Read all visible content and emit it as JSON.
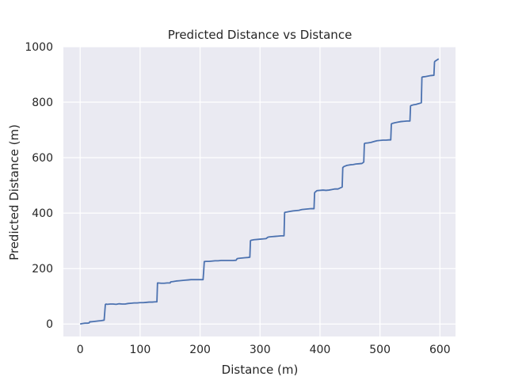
{
  "chart_data": {
    "type": "line",
    "title": "Predicted Distance vs Distance",
    "xlabel": "Distance (m)",
    "ylabel": "Predicted Distance (m)",
    "xlim": [
      -28,
      626
    ],
    "ylim": [
      -45,
      1000
    ],
    "xticks": [
      0,
      100,
      200,
      300,
      400,
      500,
      600
    ],
    "yticks": [
      0,
      200,
      400,
      600,
      800,
      1000
    ],
    "xtick_labels": [
      "0",
      "100",
      "200",
      "300",
      "400",
      "500",
      "600"
    ],
    "ytick_labels": [
      "0",
      "200",
      "400",
      "600",
      "800",
      "1000"
    ],
    "grid": true,
    "background_color": "#eaeaf2",
    "grid_color": "#ffffff",
    "series": [
      {
        "color": "#4c72b0",
        "x": [
          0,
          2,
          5,
          8,
          12,
          15,
          16,
          18,
          22,
          26,
          30,
          35,
          40,
          42,
          43,
          45,
          50,
          55,
          60,
          65,
          70,
          75,
          80,
          85,
          90,
          95,
          100,
          105,
          110,
          115,
          120,
          125,
          128,
          129,
          130,
          135,
          140,
          145,
          150,
          151,
          155,
          160,
          165,
          170,
          175,
          180,
          185,
          190,
          195,
          200,
          205,
          206,
          207,
          210,
          215,
          220,
          225,
          230,
          235,
          240,
          245,
          250,
          255,
          260,
          262,
          265,
          270,
          275,
          280,
          283,
          284,
          285,
          290,
          295,
          300,
          305,
          310,
          313,
          315,
          320,
          325,
          330,
          335,
          340,
          341,
          342,
          345,
          350,
          355,
          360,
          365,
          368,
          370,
          375,
          380,
          385,
          390,
          391,
          392,
          395,
          400,
          405,
          410,
          415,
          420,
          425,
          430,
          435,
          437,
          438,
          440,
          445,
          450,
          455,
          460,
          465,
          470,
          473,
          474,
          475,
          480,
          485,
          490,
          495,
          500,
          505,
          510,
          515,
          518,
          519,
          520,
          525,
          530,
          535,
          540,
          545,
          550,
          551,
          552,
          555,
          560,
          565,
          569,
          570,
          571,
          575,
          580,
          585,
          590,
          591,
          592,
          595,
          597,
          598
        ],
        "y": [
          0,
          1,
          2,
          3,
          3,
          4,
          8,
          8,
          9,
          10,
          11,
          12,
          14,
          70,
          72,
          71,
          72,
          72,
          71,
          73,
          72,
          72,
          74,
          75,
          76,
          76,
          77,
          77,
          78,
          79,
          79,
          80,
          80,
          148,
          148,
          147,
          147,
          148,
          148,
          152,
          153,
          155,
          156,
          157,
          158,
          159,
          160,
          160,
          160,
          160,
          160,
          190,
          225,
          226,
          226,
          227,
          228,
          228,
          229,
          229,
          229,
          229,
          229,
          230,
          236,
          237,
          238,
          239,
          240,
          241,
          300,
          302,
          304,
          305,
          306,
          307,
          308,
          313,
          314,
          315,
          316,
          317,
          318,
          318,
          402,
          403,
          404,
          406,
          408,
          409,
          410,
          412,
          413,
          414,
          415,
          416,
          416,
          473,
          476,
          481,
          482,
          483,
          482,
          483,
          485,
          487,
          487,
          492,
          494,
          564,
          568,
          572,
          574,
          575,
          577,
          578,
          579,
          584,
          650,
          652,
          653,
          655,
          658,
          661,
          662,
          663,
          663,
          664,
          664,
          721,
          723,
          726,
          728,
          730,
          731,
          732,
          732,
          786,
          788,
          790,
          792,
          795,
          798,
          890,
          891,
          892,
          894,
          896,
          897,
          945,
          948,
          952,
          955,
          956
        ]
      }
    ]
  }
}
